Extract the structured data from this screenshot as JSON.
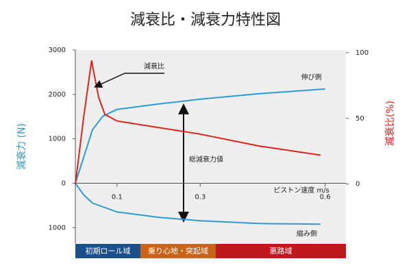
{
  "chart_data": {
    "type": "line",
    "title": "減衰比・減衰力特性図",
    "ylabel": "減衰力 (N)",
    "y2label": "減衰比(%)",
    "xlabel": "ピストン速度 m/s",
    "annotation": "総減衰力値",
    "xlim": [
      0,
      0.65
    ],
    "xticks": [
      0.1,
      0.3,
      0.6
    ],
    "ylim": [
      -1350,
      3000
    ],
    "yticks": [
      {
        "value": -1000,
        "label": "1000"
      },
      0,
      1000,
      2000,
      3000
    ],
    "y2lim": [
      -45,
      102
    ],
    "y2ticks": [
      0,
      50,
      100
    ],
    "series": [
      {
        "name": "伸び側",
        "color": "#2a9ad8",
        "x": [
          0,
          0.02,
          0.041,
          0.066,
          0.1,
          0.2,
          0.3,
          0.44,
          0.6
        ],
        "values": [
          0,
          585,
          1200,
          1508,
          1662,
          1785,
          1892,
          2015,
          2123
        ]
      },
      {
        "name": "縮み側",
        "color": "#2a9ad8",
        "x": [
          0,
          0.02,
          0.041,
          0.1,
          0.2,
          0.3,
          0.44,
          0.589
        ],
        "values": [
          0,
          -262,
          -446,
          -646,
          -769,
          -846,
          -908,
          -923
        ]
      },
      {
        "name": "減衰比",
        "color": "#e0201a",
        "axis": "y2",
        "x": [
          0,
          0.02,
          0.039,
          0.046,
          0.056,
          0.071,
          0.1,
          0.2,
          0.3,
          0.44,
          0.589
        ],
        "values": [
          0,
          51,
          94,
          82,
          66,
          53,
          48,
          43,
          38,
          29,
          22
        ]
      }
    ],
    "regions": [
      {
        "label": "初期ロール域",
        "color": "#1a4f8c"
      },
      {
        "label": "乗り心地・突起域",
        "color": "#c8641a"
      },
      {
        "label": "悪路域",
        "color": "#c0181f"
      }
    ]
  }
}
